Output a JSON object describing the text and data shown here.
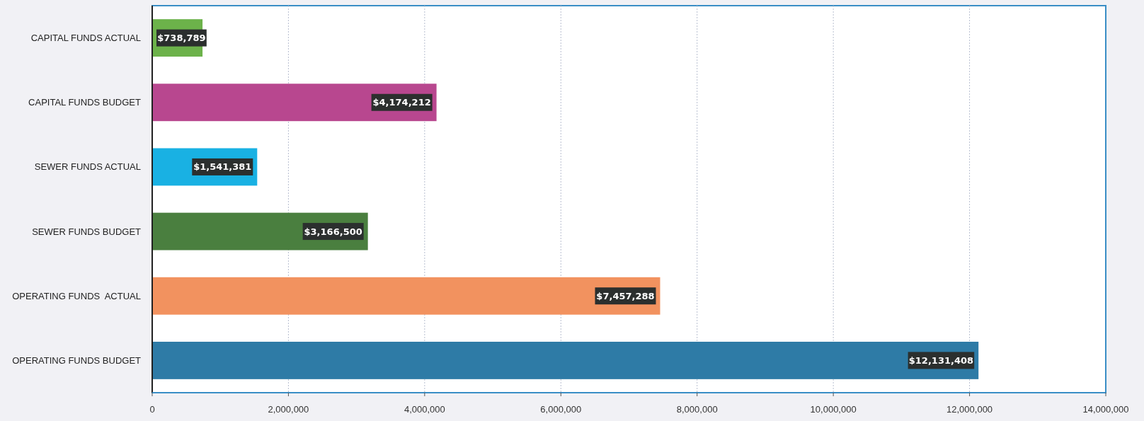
{
  "chart_data": {
    "type": "bar",
    "orientation": "horizontal",
    "categories": [
      "CAPITAL FUNDS ACTUAL",
      "CAPITAL FUNDS BUDGET",
      "SEWER FUNDS ACTUAL",
      "SEWER FUNDS BUDGET",
      "OPERATING FUNDS  ACTUAL",
      "OPERATING FUNDS BUDGET"
    ],
    "values": [
      738789,
      4174212,
      1541381,
      3166500,
      7457288,
      12131408
    ],
    "colors": [
      "#6cb24a",
      "#b8478f",
      "#19b1e3",
      "#4a7f3f",
      "#f2925f",
      "#2e7ba6"
    ],
    "value_labels": [
      "$738,789",
      "$4,174,212",
      "$1,541,381",
      "$3,166,500",
      "$7,457,288",
      "$12,131,408"
    ],
    "xlim": [
      0,
      14000000
    ],
    "xticks": [
      {
        "value": 0,
        "label": "0"
      },
      {
        "value": 2000000,
        "label": "2,000,000"
      },
      {
        "value": 4000000,
        "label": "4,000,000"
      },
      {
        "value": 6000000,
        "label": "6,000,000"
      },
      {
        "value": 8000000,
        "label": "8,000,000"
      },
      {
        "value": 10000000,
        "label": "10,000,000"
      },
      {
        "value": 12000000,
        "label": "12,000,000"
      },
      {
        "value": 14000000,
        "label": "14,000,000"
      }
    ],
    "grid": "x"
  }
}
